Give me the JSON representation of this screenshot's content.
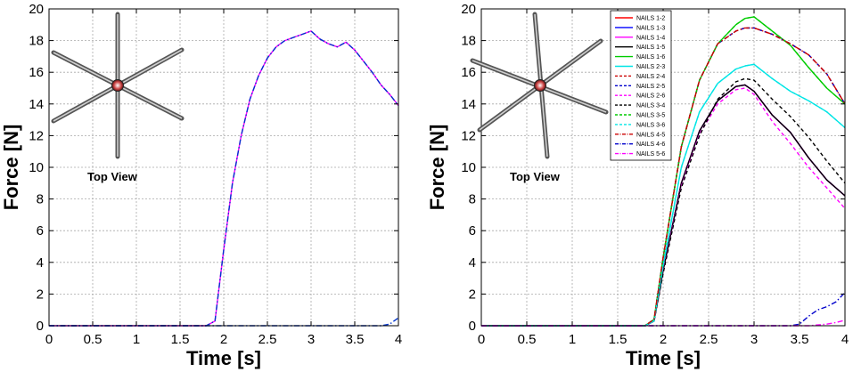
{
  "chart_data": [
    {
      "type": "line",
      "xlabel": "Time [s]",
      "ylabel": "Force [N]",
      "xlim": [
        0,
        4
      ],
      "ylim": [
        0,
        20
      ],
      "xticks": [
        "0",
        "0.5",
        "1",
        "1.5",
        "2",
        "2.5",
        "3",
        "3.5",
        "4"
      ],
      "yticks": [
        "0",
        "2",
        "4",
        "6",
        "8",
        "10",
        "12",
        "14",
        "16",
        "18",
        "20"
      ],
      "grid": true,
      "inset_caption": "Top View",
      "series": [
        {
          "color": "#ff00ff",
          "dash": "solid",
          "x": [
            0,
            1.8,
            1.9,
            2.0,
            2.1,
            2.2,
            2.3,
            2.4,
            2.5,
            2.6,
            2.7,
            2.8,
            2.9,
            3.0,
            3.1,
            3.2,
            3.3,
            3.4,
            3.5,
            3.6,
            3.7,
            3.8,
            3.9,
            4.0
          ],
          "y": [
            0,
            0,
            0.3,
            4.8,
            9.0,
            12.0,
            14.3,
            15.8,
            16.9,
            17.6,
            18.0,
            18.2,
            18.4,
            18.6,
            18.1,
            17.8,
            17.6,
            17.9,
            17.4,
            16.7,
            16.0,
            15.2,
            14.6,
            13.9
          ]
        },
        {
          "color": "#0033cc",
          "dash": "dashdot",
          "x": [
            0,
            1.8,
            1.9,
            2.0,
            2.1,
            2.2,
            2.3,
            2.4,
            2.5,
            2.6,
            2.7,
            2.8,
            2.9,
            3.0,
            3.1,
            3.2,
            3.3,
            3.4,
            3.5,
            3.6,
            3.7,
            3.8,
            3.9,
            4.0
          ],
          "y": [
            0,
            0,
            0.3,
            4.8,
            9.0,
            12.0,
            14.3,
            15.8,
            16.9,
            17.6,
            18.0,
            18.2,
            18.4,
            18.6,
            18.1,
            17.8,
            17.6,
            17.9,
            17.4,
            16.7,
            16.0,
            15.2,
            14.6,
            13.9
          ]
        },
        {
          "color": "#0033cc",
          "dash": "dashdot",
          "x": [
            0,
            3.8,
            3.9,
            4.0
          ],
          "y": [
            0,
            0,
            0.1,
            0.5
          ]
        }
      ]
    },
    {
      "type": "line",
      "xlabel": "Time [s]",
      "ylabel": "Force [N]",
      "xlim": [
        0,
        4
      ],
      "ylim": [
        0,
        20
      ],
      "xticks": [
        "0",
        "0.5",
        "1",
        "1.5",
        "2",
        "2.5",
        "3",
        "3.5",
        "4"
      ],
      "yticks": [
        "0",
        "2",
        "4",
        "6",
        "8",
        "10",
        "12",
        "14",
        "16",
        "18",
        "20"
      ],
      "grid": true,
      "inset_caption": "Top View",
      "legend_position": "top-right",
      "series": [
        {
          "name": "NAILS 1-2",
          "color": "#ff0000",
          "dash": "solid",
          "x": [
            0,
            1.8,
            1.9,
            2.0,
            2.2,
            2.4,
            2.6,
            2.8,
            2.9,
            3.0,
            3.2,
            3.4,
            3.6,
            3.8,
            4.0
          ],
          "y": [
            0,
            0,
            0.3,
            3.5,
            9.0,
            12.3,
            14.2,
            15.1,
            15.2,
            14.8,
            13.3,
            12.2,
            10.6,
            9.2,
            8.2
          ]
        },
        {
          "name": "NAILS 1-3",
          "color": "#0000ff",
          "dash": "solid",
          "x": [
            0,
            1.8,
            1.9,
            2.0,
            2.2,
            2.4,
            2.6,
            2.8,
            2.9,
            3.0,
            3.2,
            3.4,
            3.6,
            3.8,
            4.0
          ],
          "y": [
            0,
            0,
            0.3,
            3.5,
            9.0,
            12.3,
            14.2,
            15.1,
            15.2,
            14.8,
            13.3,
            12.2,
            10.6,
            9.2,
            8.2
          ]
        },
        {
          "name": "NAILS 1-4",
          "color": "#ff00ff",
          "dash": "solid",
          "x": [
            0,
            1.8,
            1.9,
            2.0,
            2.2,
            2.4,
            2.6,
            2.8,
            2.9,
            3.0,
            3.2,
            3.4,
            3.6,
            3.8,
            4.0
          ],
          "y": [
            0,
            0,
            0.3,
            3.5,
            9.0,
            12.3,
            14.2,
            15.1,
            15.2,
            14.8,
            13.3,
            12.2,
            10.6,
            9.2,
            8.2
          ]
        },
        {
          "name": "NAILS 1-5",
          "color": "#000000",
          "dash": "solid",
          "x": [
            0,
            1.8,
            1.9,
            2.0,
            2.2,
            2.4,
            2.6,
            2.8,
            2.9,
            3.0,
            3.2,
            3.4,
            3.6,
            3.8,
            4.0
          ],
          "y": [
            0,
            0,
            0.3,
            3.5,
            9.0,
            12.3,
            14.2,
            15.1,
            15.2,
            14.8,
            13.3,
            12.2,
            10.6,
            9.2,
            8.2
          ]
        },
        {
          "name": "NAILS 1-6",
          "color": "#00cc00",
          "dash": "solid",
          "x": [
            0,
            1.8,
            1.9,
            2.0,
            2.2,
            2.4,
            2.6,
            2.8,
            2.9,
            3.0,
            3.2,
            3.4,
            3.6,
            3.8,
            4.0
          ],
          "y": [
            0,
            0,
            0.4,
            4.3,
            11.3,
            15.5,
            17.8,
            19.0,
            19.4,
            19.5,
            18.6,
            17.7,
            16.3,
            15.0,
            14.0
          ]
        },
        {
          "name": "NAILS 2-3",
          "color": "#00e5e5",
          "dash": "solid",
          "x": [
            0,
            1.8,
            1.9,
            2.0,
            2.2,
            2.4,
            2.6,
            2.8,
            2.9,
            3.0,
            3.2,
            3.4,
            3.6,
            3.8,
            4.0
          ],
          "y": [
            0,
            0,
            0.3,
            3.8,
            10.0,
            13.5,
            15.3,
            16.2,
            16.4,
            16.5,
            15.6,
            14.8,
            14.2,
            13.5,
            12.5
          ]
        },
        {
          "name": "NAILS 2-4",
          "color": "#cc0000",
          "dash": "dashed",
          "x": [
            0,
            1.8,
            1.9,
            2.0,
            2.2,
            2.4,
            2.6,
            2.8,
            2.9,
            3.0,
            3.2,
            3.4,
            3.6,
            3.8,
            4.0
          ],
          "y": [
            0,
            0,
            0.4,
            4.3,
            11.3,
            15.5,
            17.8,
            18.6,
            18.8,
            18.8,
            18.4,
            17.8,
            17.1,
            15.9,
            14.0
          ]
        },
        {
          "name": "NAILS 2-5",
          "color": "#0000cc",
          "dash": "dashed",
          "x": [
            0,
            1.8,
            1.9,
            2.0,
            2.2,
            2.4,
            2.6,
            2.8,
            2.9,
            3.0,
            3.2,
            3.4,
            3.6,
            3.8,
            4.0
          ],
          "y": [
            0,
            0,
            0.4,
            4.3,
            11.3,
            15.5,
            17.8,
            18.6,
            18.8,
            18.8,
            18.4,
            17.8,
            17.1,
            15.9,
            14.0
          ]
        },
        {
          "name": "NAILS 2-6",
          "color": "#ff00ff",
          "dash": "dashed",
          "x": [
            0,
            1.8,
            1.9,
            2.0,
            2.2,
            2.4,
            2.6,
            2.8,
            2.9,
            3.0,
            3.2,
            3.4,
            3.6,
            3.8,
            4.0
          ],
          "y": [
            0,
            0,
            0.3,
            3.4,
            8.8,
            12.1,
            14.0,
            14.9,
            15.0,
            14.6,
            12.9,
            11.5,
            10.0,
            8.7,
            7.4
          ]
        },
        {
          "name": "NAILS 3-4",
          "color": "#000000",
          "dash": "dashed",
          "x": [
            0,
            1.8,
            1.9,
            2.0,
            2.2,
            2.4,
            2.6,
            2.8,
            2.9,
            3.0,
            3.2,
            3.4,
            3.6,
            3.8,
            4.0
          ],
          "y": [
            0,
            0,
            0.3,
            3.3,
            8.7,
            12.0,
            14.3,
            15.4,
            15.6,
            15.5,
            14.3,
            13.2,
            11.9,
            10.4,
            9.0
          ]
        },
        {
          "name": "NAILS 3-5",
          "color": "#00cc00",
          "dash": "dashed",
          "x": [
            0,
            1.8,
            1.9,
            2.0,
            2.2,
            2.4,
            2.6,
            2.8,
            2.9,
            3.0,
            3.2,
            3.4,
            3.6,
            3.8,
            4.0
          ],
          "y": [
            0,
            0,
            0.4,
            4.3,
            11.3,
            15.5,
            17.8,
            19.0,
            19.4,
            19.5,
            18.6,
            17.7,
            16.3,
            15.0,
            14.0
          ]
        },
        {
          "name": "NAILS 3-6",
          "color": "#00e5e5",
          "dash": "dashed",
          "x": [
            0,
            1.8,
            1.9,
            2.0,
            2.2,
            2.4,
            2.6,
            2.8,
            2.9,
            3.0,
            3.2,
            3.4,
            3.6,
            3.8,
            4.0
          ],
          "y": [
            0,
            0,
            0.3,
            3.8,
            10.0,
            13.5,
            15.3,
            16.2,
            16.4,
            16.5,
            15.6,
            14.8,
            14.2,
            13.5,
            12.5
          ]
        },
        {
          "name": "NAILS 4-5",
          "color": "#cc0000",
          "dash": "dashdot",
          "x": [
            0,
            1.8,
            1.9,
            2.0,
            2.2,
            2.4,
            2.6,
            2.8,
            2.9,
            3.0,
            3.2,
            3.4,
            3.6,
            3.8,
            4.0
          ],
          "y": [
            0,
            0,
            0.4,
            4.3,
            11.3,
            15.5,
            17.8,
            18.6,
            18.8,
            18.8,
            18.4,
            17.8,
            17.1,
            15.9,
            14.0
          ]
        },
        {
          "name": "NAILS 4-6",
          "color": "#0000cc",
          "dash": "dashdot",
          "x": [
            0,
            3.4,
            3.5,
            3.6,
            3.7,
            3.8,
            3.9,
            4.0
          ],
          "y": [
            0,
            0,
            0.1,
            0.6,
            1.0,
            1.2,
            1.5,
            2.1
          ]
        },
        {
          "name": "NAILS 5-6",
          "color": "#ff00ff",
          "dash": "dashdot",
          "x": [
            0,
            3.6,
            3.7,
            3.8,
            3.9,
            4.0
          ],
          "y": [
            0,
            0,
            0.05,
            0.1,
            0.2,
            0.35
          ]
        }
      ]
    }
  ]
}
